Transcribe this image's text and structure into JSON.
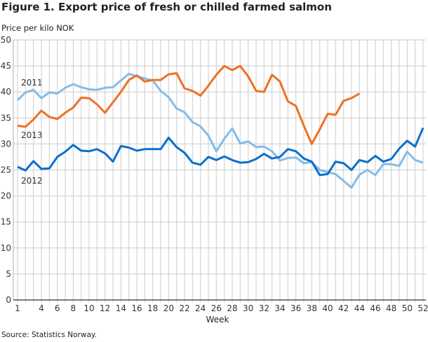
{
  "chart_data": {
    "type": "line",
    "title": "Figure 1. Export price of fresh or chilled farmed salmon",
    "ylabel": "Price per kilo NOK",
    "xlabel": "Week",
    "source": "Source: Statistics Norway.",
    "ylim": [
      0,
      50
    ],
    "yticks": [
      0,
      5,
      10,
      15,
      20,
      25,
      30,
      35,
      40,
      45,
      50
    ],
    "xlim": [
      1,
      52
    ],
    "xticks": [
      1,
      4,
      6,
      8,
      10,
      12,
      14,
      16,
      18,
      20,
      22,
      24,
      26,
      28,
      30,
      32,
      34,
      36,
      38,
      40,
      42,
      44,
      46,
      48,
      50,
      52
    ],
    "grid": true,
    "series": [
      {
        "name": "2011",
        "color": "#84bce8",
        "values": [
          38.4,
          39.9,
          40.4,
          38.8,
          39.9,
          39.7,
          40.8,
          41.5,
          40.9,
          40.5,
          40.4,
          40.8,
          40.9,
          42.2,
          43.5,
          43.0,
          42.6,
          42.2,
          40.2,
          39.0,
          36.8,
          36.1,
          34.2,
          33.4,
          31.6,
          28.6,
          31.0,
          33.0,
          30.1,
          30.5,
          29.4,
          29.5,
          28.6,
          26.8,
          27.3,
          27.4,
          26.3,
          26.5,
          25.0,
          24.6,
          24.2,
          22.9,
          21.6,
          24.1,
          25.0,
          24.0,
          26.1,
          26.1,
          25.8,
          28.5,
          26.9,
          26.4
        ]
      },
      {
        "name": "2012",
        "color": "#0b6fcc",
        "values": [
          25.6,
          24.9,
          26.7,
          25.2,
          25.3,
          27.5,
          28.5,
          29.8,
          28.7,
          28.6,
          29.0,
          28.2,
          26.6,
          29.6,
          29.3,
          28.7,
          29.0,
          29.0,
          29.0,
          31.2,
          29.4,
          28.3,
          26.4,
          26.0,
          27.5,
          26.9,
          27.6,
          26.9,
          26.4,
          26.5,
          27.1,
          28.1,
          27.2,
          27.5,
          29.0,
          28.6,
          27.2,
          26.6,
          24.0,
          24.2,
          26.6,
          26.3,
          25.0,
          26.9,
          26.5,
          27.7,
          26.6,
          27.1,
          29.1,
          30.6,
          29.5,
          33.1
        ]
      },
      {
        "name": "2013",
        "color": "#ed7125",
        "values": [
          33.5,
          33.3,
          34.7,
          36.4,
          35.2,
          34.8,
          36.0,
          37.0,
          38.9,
          38.8,
          37.6,
          36.0,
          38.0,
          40.0,
          42.3,
          43.2,
          42.0,
          42.3,
          42.3,
          43.4,
          43.6,
          40.7,
          40.2,
          39.3,
          41.2,
          43.3,
          45.0,
          44.2,
          45.0,
          43.0,
          40.2,
          40.0,
          43.3,
          42.0,
          38.2,
          37.3,
          33.5,
          30.0,
          32.8,
          35.8,
          35.6,
          38.3,
          38.8,
          39.7
        ]
      }
    ]
  }
}
